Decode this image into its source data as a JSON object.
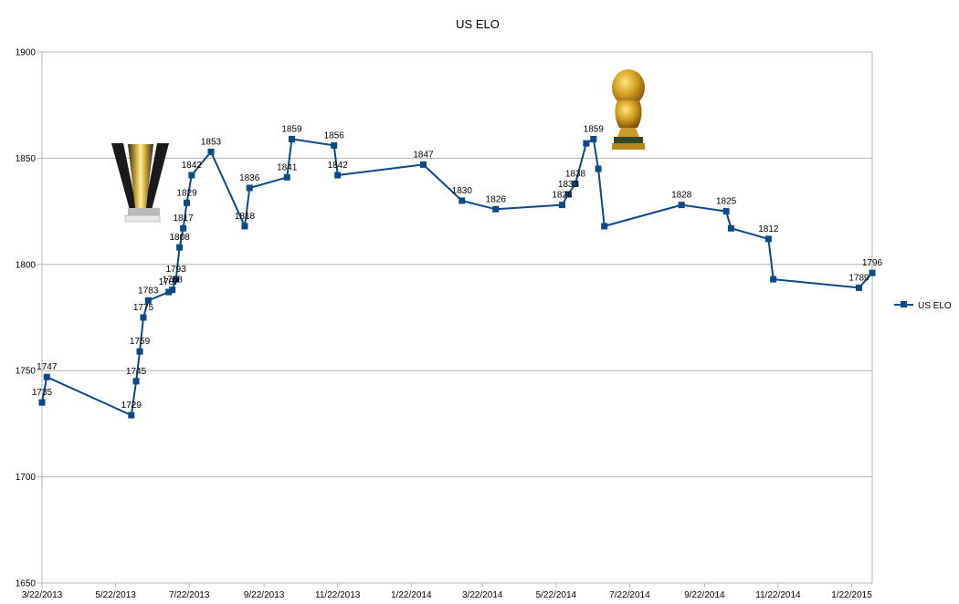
{
  "chart_data": {
    "type": "line",
    "title": "US ELO",
    "xlabel": "",
    "ylabel": "",
    "ylim": [
      1650,
      1900
    ],
    "yticks": [
      1650,
      1700,
      1750,
      1800,
      1850,
      1900
    ],
    "xticks": [
      "3/22/2013",
      "5/22/2013",
      "7/22/2013",
      "9/22/2013",
      "11/22/2013",
      "1/22/2014",
      "3/22/2014",
      "5/22/2014",
      "7/22/2014",
      "9/22/2014",
      "11/22/2014",
      "1/22/2015"
    ],
    "grid": "horizontal",
    "legend": "right",
    "series": [
      {
        "name": "US ELO",
        "color": "#0a4a87",
        "marker": "square",
        "points": [
          {
            "x": "2013-03-22",
            "y": 1735
          },
          {
            "x": "2013-03-26",
            "y": 1747
          },
          {
            "x": "2013-06-04",
            "y": 1729
          },
          {
            "x": "2013-06-08",
            "y": 1745
          },
          {
            "x": "2013-06-11",
            "y": 1759
          },
          {
            "x": "2013-06-14",
            "y": 1775
          },
          {
            "x": "2013-06-18",
            "y": 1783
          },
          {
            "x": "2013-07-05",
            "y": 1787
          },
          {
            "x": "2013-07-08",
            "y": 1788
          },
          {
            "x": "2013-07-11",
            "y": 1793
          },
          {
            "x": "2013-07-14",
            "y": 1808
          },
          {
            "x": "2013-07-17",
            "y": 1817
          },
          {
            "x": "2013-07-20",
            "y": 1829
          },
          {
            "x": "2013-07-24",
            "y": 1842
          },
          {
            "x": "2013-08-09",
            "y": 1853
          },
          {
            "x": "2013-09-06",
            "y": 1818
          },
          {
            "x": "2013-09-10",
            "y": 1836
          },
          {
            "x": "2013-10-11",
            "y": 1841
          },
          {
            "x": "2013-10-15",
            "y": 1859
          },
          {
            "x": "2013-11-19",
            "y": 1856
          },
          {
            "x": "2013-11-22",
            "y": 1842
          },
          {
            "x": "2014-02-01",
            "y": 1847
          },
          {
            "x": "2014-03-05",
            "y": 1830
          },
          {
            "x": "2014-04-02",
            "y": 1826
          },
          {
            "x": "2014-05-27",
            "y": 1828
          },
          {
            "x": "2014-06-01",
            "y": 1833
          },
          {
            "x": "2014-06-07",
            "y": 1838
          },
          {
            "x": "2014-06-16",
            "y": 1857
          },
          {
            "x": "2014-06-22",
            "y": 1859
          },
          {
            "x": "2014-06-26",
            "y": 1845
          },
          {
            "x": "2014-07-01",
            "y": 1818
          },
          {
            "x": "2014-09-03",
            "y": 1828
          },
          {
            "x": "2014-10-10",
            "y": 1825
          },
          {
            "x": "2014-10-14",
            "y": 1817
          },
          {
            "x": "2014-11-14",
            "y": 1812
          },
          {
            "x": "2014-11-18",
            "y": 1793
          },
          {
            "x": "2015-01-28",
            "y": 1789
          },
          {
            "x": "2015-02-08",
            "y": 1796
          }
        ],
        "labels": [
          "1735",
          "1747",
          "1729",
          "1745",
          "1759",
          "1775",
          "1783",
          "1787",
          "1788",
          "1793",
          "1808",
          "1817",
          "1829",
          "1842",
          "1853",
          "1818",
          "1836",
          "1841",
          "1859",
          "1856",
          "1842",
          "1847",
          "1830",
          "1826",
          "1828",
          "1833",
          "1838",
          "",
          "1859",
          "",
          "",
          "1828",
          "1825",
          "",
          "1812",
          "",
          "1789",
          "1796"
        ]
      }
    ]
  },
  "decorations": {
    "gold_cup_icon": "gold-cup-trophy",
    "world_cup_icon": "world-cup-trophy"
  }
}
